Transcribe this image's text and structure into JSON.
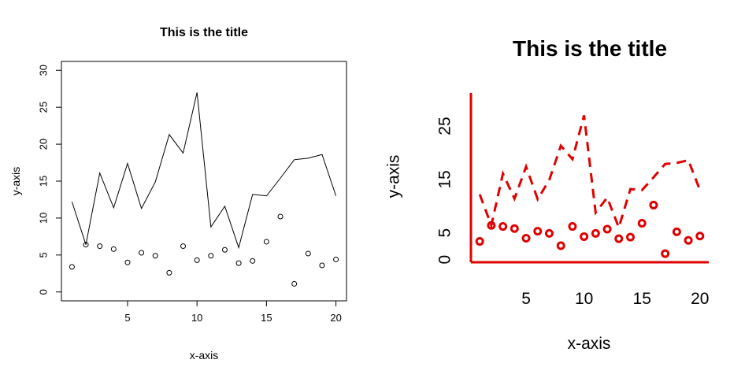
{
  "chart_data": [
    {
      "type": "scatter",
      "title": "This is the title",
      "xlabel": "x-axis",
      "ylabel": "y-axis",
      "xlim": [
        0.24,
        20.76
      ],
      "ylim": [
        -1.2,
        31.2
      ],
      "xticks": [
        "5",
        "10",
        "15",
        "20"
      ],
      "yticks": [
        "0",
        "5",
        "10",
        "15",
        "20",
        "25",
        "30"
      ],
      "color": "#000000",
      "x": [
        1,
        2,
        3,
        4,
        5,
        6,
        7,
        8,
        9,
        10,
        11,
        12,
        13,
        14,
        15,
        16,
        17,
        18,
        19,
        20
      ],
      "series": [
        {
          "kind": "line",
          "values": [
            12.2,
            6.4,
            16.1,
            11.4,
            17.4,
            11.3,
            14.9,
            21.3,
            18.8,
            27.0,
            8.8,
            11.6,
            6.0,
            13.2,
            13.0,
            15.4,
            17.9,
            18.1,
            18.6,
            13.0
          ]
        },
        {
          "kind": "points",
          "values": [
            3.4,
            6.4,
            6.2,
            5.8,
            4.0,
            5.3,
            4.9,
            2.6,
            6.2,
            4.3,
            4.9,
            5.7,
            3.9,
            4.2,
            6.8,
            10.2,
            1.1,
            5.2,
            3.6,
            4.4
          ]
        }
      ]
    },
    {
      "type": "scatter",
      "title": "This is the title",
      "xlabel": "x-axis",
      "ylabel": "y-axis",
      "xlim": [
        0.24,
        20.76
      ],
      "ylim": [
        -0.5,
        31.2
      ],
      "xticks": [
        "5",
        "10",
        "15",
        "20"
      ],
      "yticks": [
        "0",
        "5",
        "15",
        "25"
      ],
      "color": "#e00000",
      "x": [
        1,
        2,
        3,
        4,
        5,
        6,
        7,
        8,
        9,
        10,
        11,
        12,
        13,
        14,
        15,
        16,
        17,
        18,
        19,
        20
      ],
      "series": [
        {
          "kind": "dashed-line",
          "values": [
            12.2,
            6.4,
            16.1,
            11.4,
            17.4,
            11.3,
            14.9,
            21.3,
            18.8,
            27.0,
            8.8,
            11.6,
            6.0,
            13.2,
            13.0,
            15.4,
            17.9,
            18.1,
            18.6,
            13.0
          ]
        },
        {
          "kind": "points",
          "values": [
            3.4,
            6.4,
            6.2,
            5.8,
            4.0,
            5.3,
            4.9,
            2.6,
            6.2,
            4.3,
            4.9,
            5.7,
            3.9,
            4.2,
            6.8,
            10.2,
            1.1,
            5.2,
            3.6,
            4.4
          ]
        }
      ]
    }
  ]
}
